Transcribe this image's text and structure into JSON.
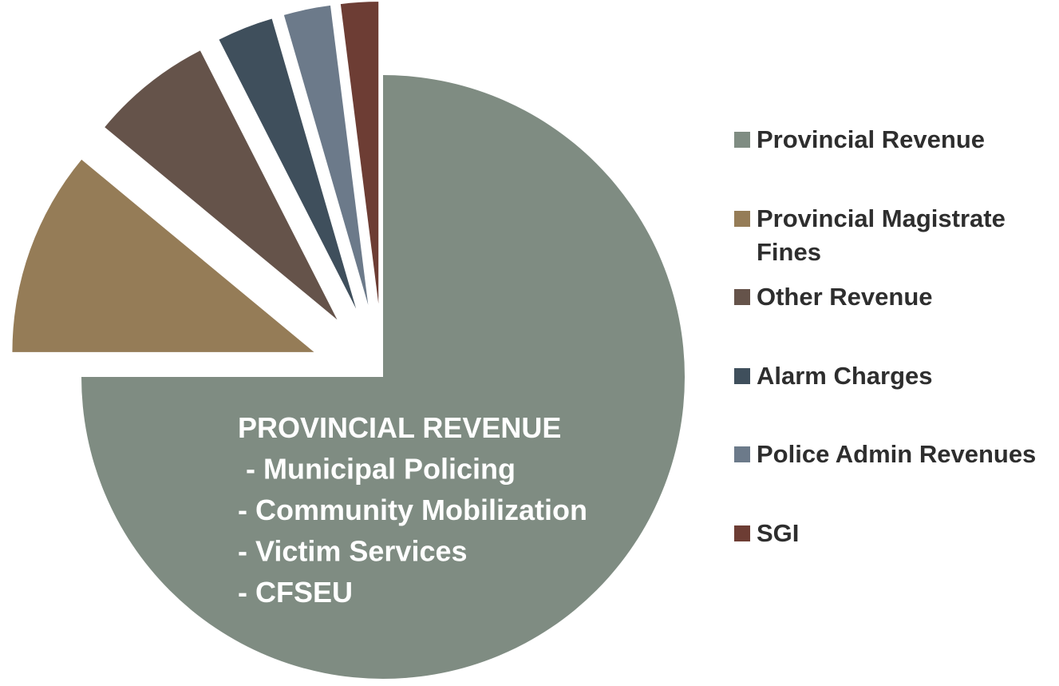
{
  "chart_data": {
    "type": "pie",
    "categories": [
      "Provincial Revenue",
      "Provincial Magistrate Fines",
      "Other Revenue",
      "Alarm Charges",
      "Police Admin Revenues",
      "SGI"
    ],
    "values": [
      75,
      11,
      6.5,
      3,
      2.5,
      2
    ],
    "colors": [
      "#7f8c82",
      "#957c57",
      "#65534a",
      "#3f4f5c",
      "#6c7a8a",
      "#6d3d34"
    ],
    "annotation": [
      "PROVINCIAL REVENUE",
      "- Municipal Policing",
      "- Community Mobilization",
      "- Victim Services",
      "- CFSEU"
    ],
    "legend": "right"
  }
}
